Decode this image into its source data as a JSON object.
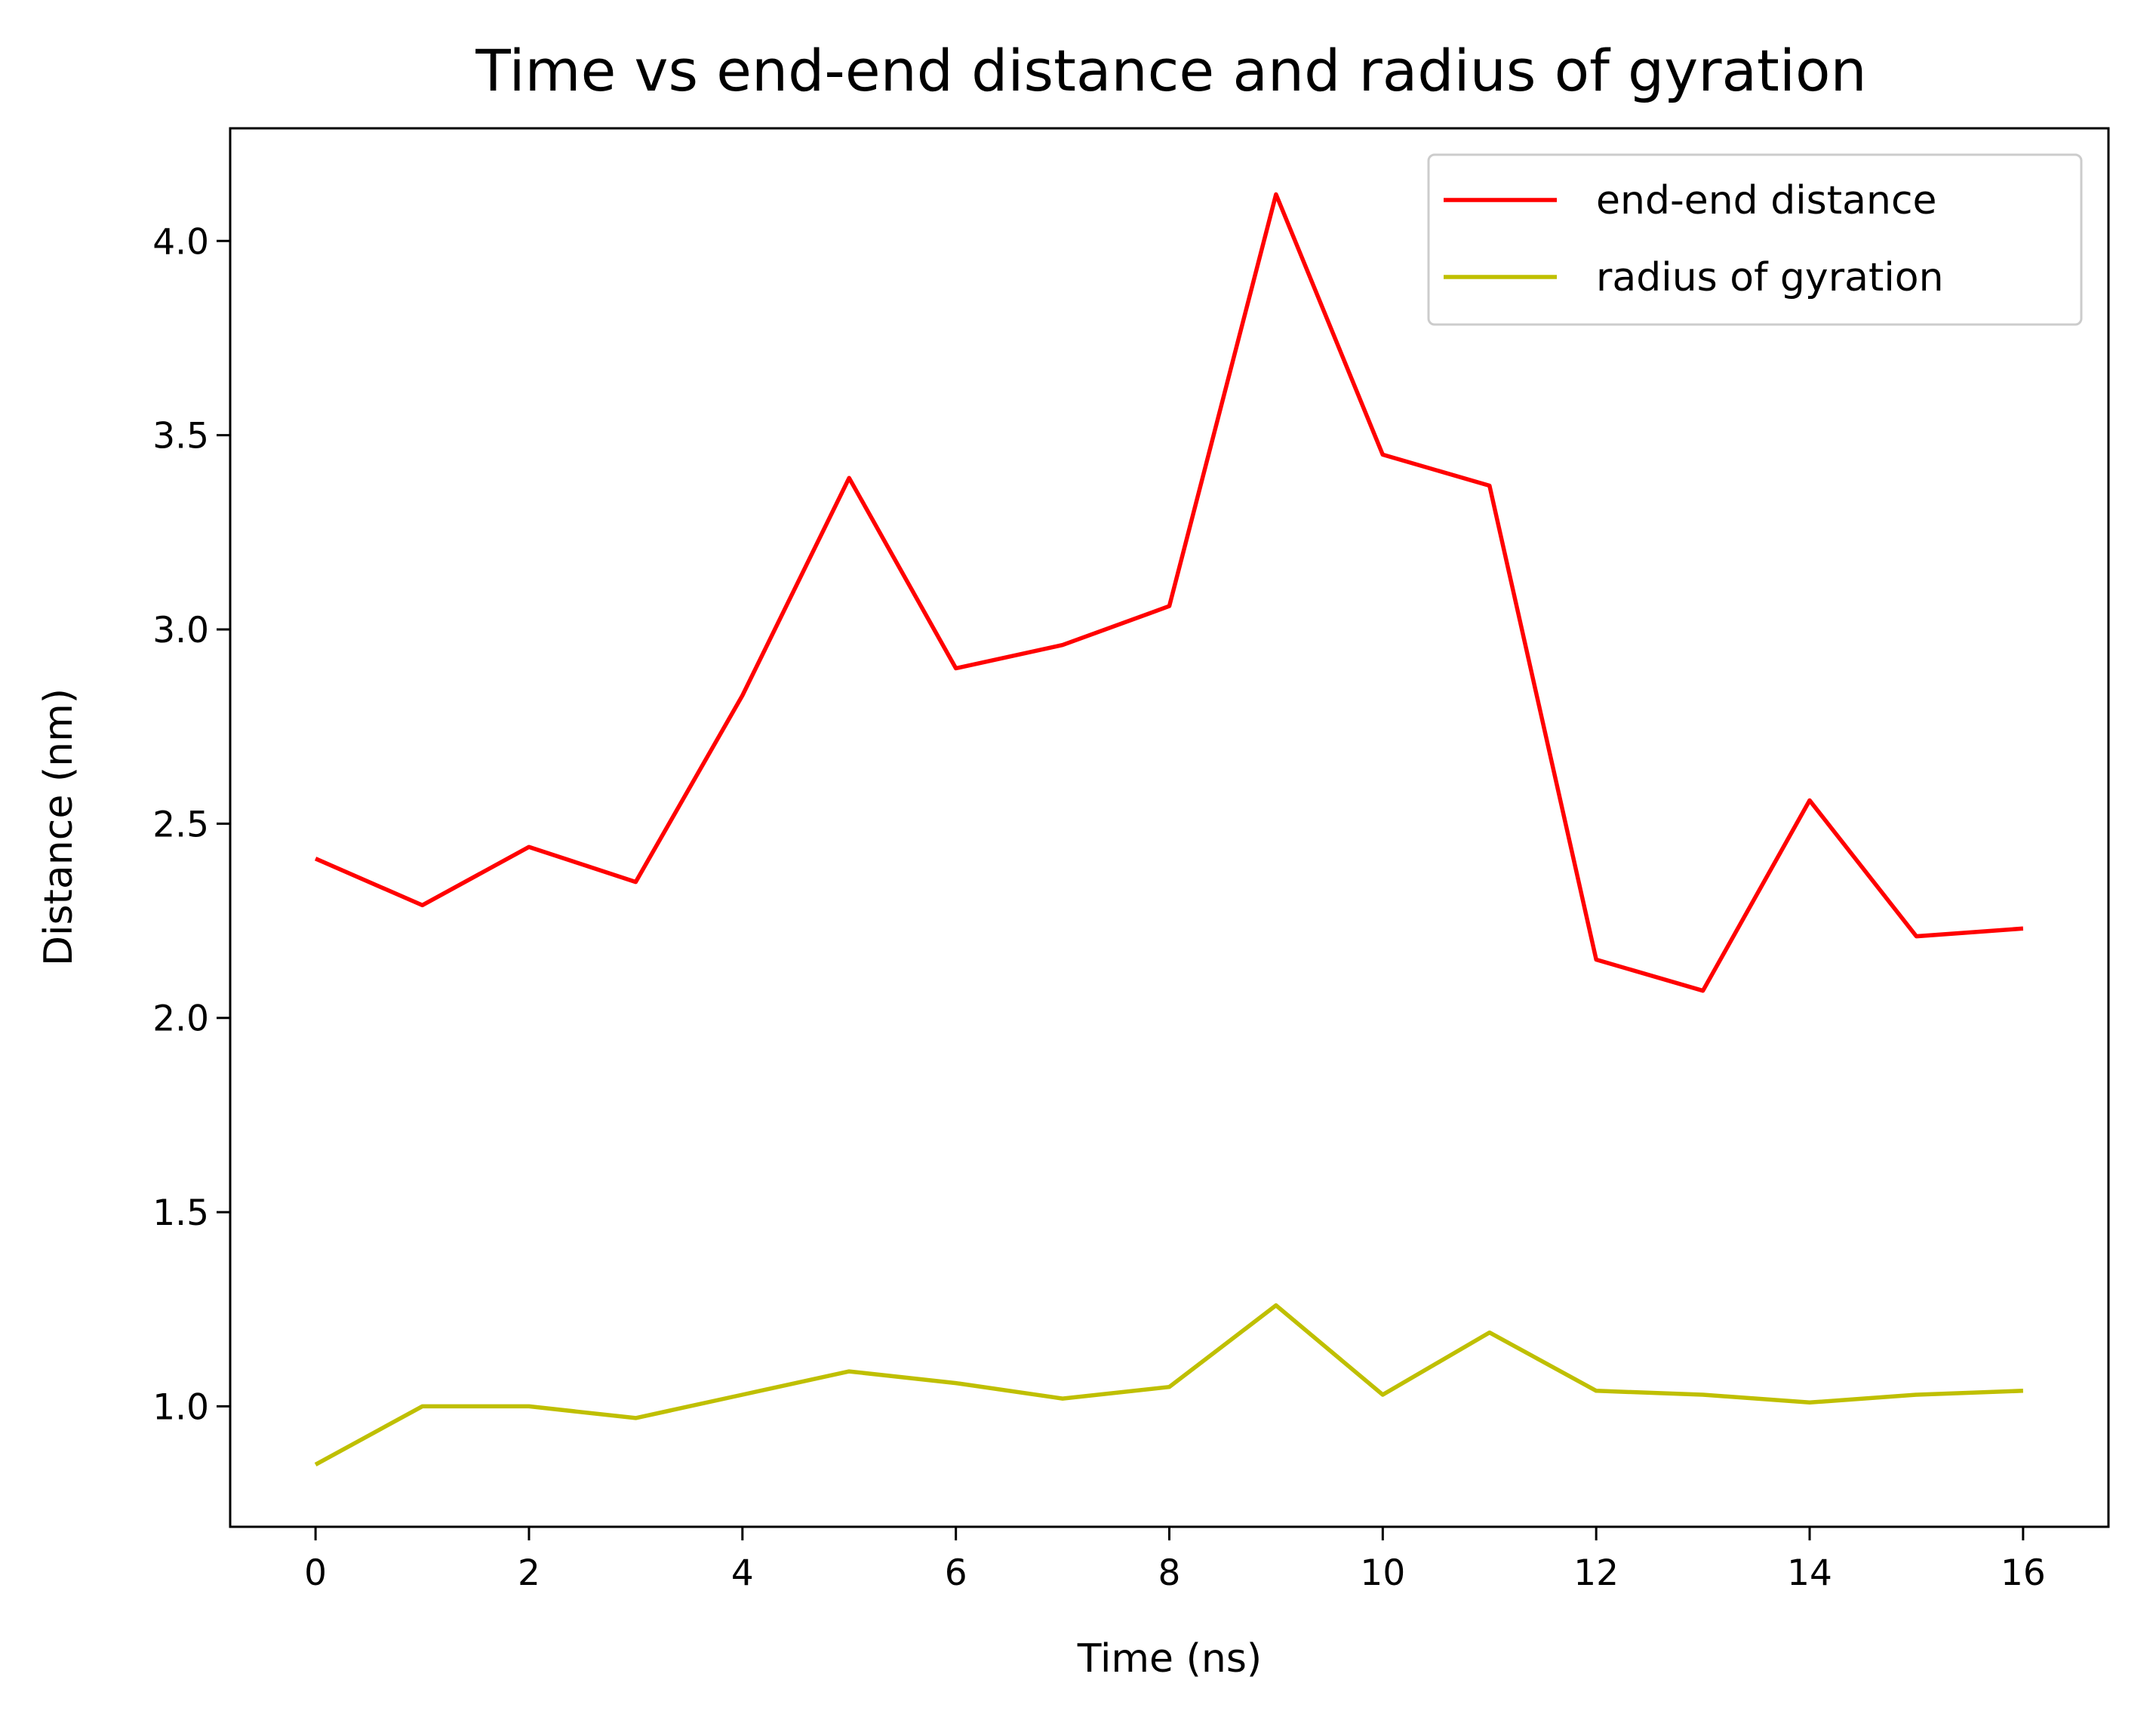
{
  "chart_data": {
    "type": "line",
    "title": "Time vs end-end distance and radius of gyration",
    "xlabel": "Time (ns)",
    "ylabel": "Distance (nm)",
    "xlim": [
      -0.8,
      16.8
    ],
    "ylim": [
      0.69,
      4.29
    ],
    "xticks": [
      0,
      2,
      4,
      6,
      8,
      10,
      12,
      14,
      16
    ],
    "xtick_labels": [
      "0",
      "2",
      "4",
      "6",
      "8",
      "10",
      "12",
      "14",
      "16"
    ],
    "yticks": [
      1.0,
      1.5,
      2.0,
      2.5,
      3.0,
      3.5,
      4.0
    ],
    "ytick_labels": [
      "1.0",
      "1.5",
      "2.0",
      "2.5",
      "3.0",
      "3.5",
      "4.0"
    ],
    "x": [
      0,
      1,
      2,
      3,
      4,
      5,
      6,
      7,
      8,
      9,
      10,
      11,
      12,
      13,
      14,
      15,
      16
    ],
    "series": [
      {
        "name": "end-end distance",
        "color": "#ff0000",
        "values": [
          2.41,
          2.29,
          2.44,
          2.35,
          2.83,
          3.39,
          2.9,
          2.96,
          3.06,
          4.12,
          3.45,
          3.37,
          2.15,
          2.07,
          2.56,
          2.21,
          2.23
        ]
      },
      {
        "name": "radius of gyration",
        "color": "#bfbf00",
        "values": [
          0.85,
          1.0,
          1.0,
          0.97,
          1.03,
          1.09,
          1.06,
          1.02,
          1.05,
          1.26,
          1.03,
          1.19,
          1.04,
          1.03,
          1.01,
          1.03,
          1.04
        ]
      }
    ],
    "grid": false,
    "legend_position": "top-right"
  }
}
